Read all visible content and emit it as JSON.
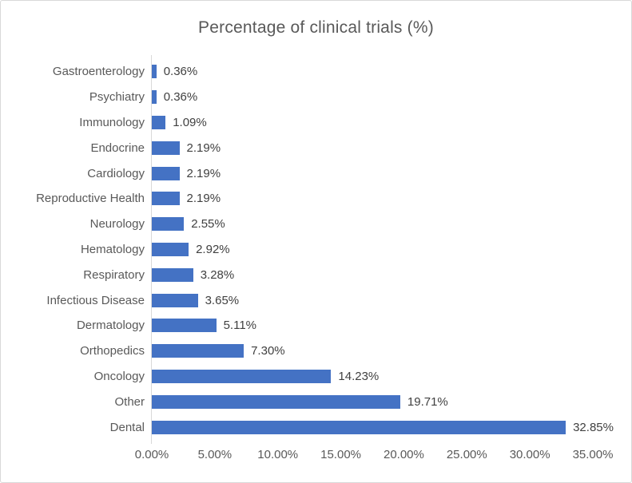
{
  "chart_data": {
    "type": "bar",
    "orientation": "horizontal",
    "title": "Percentage of clinical trials (%)",
    "category_order": "top-to-bottom",
    "categories": [
      "Gastroenterology",
      "Psychiatry",
      "Immunology",
      "Endocrine",
      "Cardiology",
      "Reproductive Health",
      "Neurology",
      "Hematology",
      "Respiratory",
      "Infectious Disease",
      "Dermatology",
      "Orthopedics",
      "Oncology",
      "Other",
      "Dental"
    ],
    "values": [
      0.36,
      0.36,
      1.09,
      2.19,
      2.19,
      2.19,
      2.55,
      2.92,
      3.28,
      3.65,
      5.11,
      7.3,
      14.23,
      19.71,
      32.85
    ],
    "value_labels": [
      "0.36%",
      "0.36%",
      "1.09%",
      "2.19%",
      "2.19%",
      "2.19%",
      "2.55%",
      "2.92%",
      "3.28%",
      "3.65%",
      "5.11%",
      "7.30%",
      "14.23%",
      "19.71%",
      "32.85%"
    ],
    "x_axis": {
      "min": 0,
      "max": 35,
      "tick_labels": [
        "0.00%",
        "5.00%",
        "10.00%",
        "15.00%",
        "20.00%",
        "25.00%",
        "30.00%",
        "35.00%"
      ]
    },
    "ylabel": "",
    "xlabel": "",
    "legend": "none",
    "gridlines": "none",
    "bar_color": "#4472C4",
    "title_color": "#595959",
    "category_label_color": "#595959",
    "value_label_color": "#404040",
    "tick_label_color": "#595959",
    "axis_line_color": "#D9D9D9",
    "border_color": "#D9D9D9"
  }
}
